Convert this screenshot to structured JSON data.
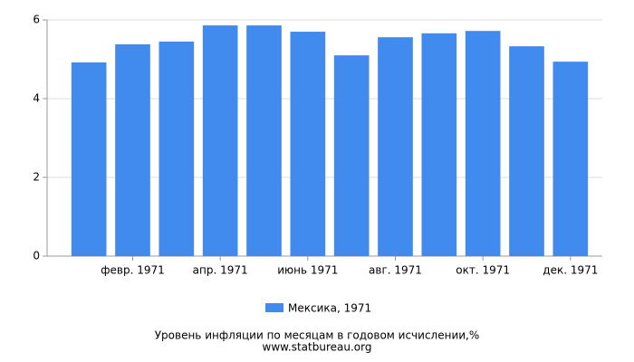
{
  "chart_data": {
    "type": "bar",
    "categories": [
      null,
      "февр. 1971",
      null,
      "апр. 1971",
      null,
      "июнь 1971",
      null,
      "авг. 1971",
      null,
      "окт. 1971",
      null,
      "дек. 1971"
    ],
    "series": [
      {
        "name": "Мексика, 1971",
        "color": "#428bee",
        "values": [
          4.92,
          5.38,
          5.45,
          5.86,
          5.86,
          5.7,
          5.1,
          5.56,
          5.66,
          5.72,
          5.33,
          4.94
        ]
      }
    ],
    "ylim": [
      0,
      6
    ],
    "yticks": [
      0,
      2,
      4,
      6
    ],
    "grid": true,
    "title": "Уровень инфляции по месяцам в годовом исчислении,%",
    "source": "www.statbureau.org"
  }
}
